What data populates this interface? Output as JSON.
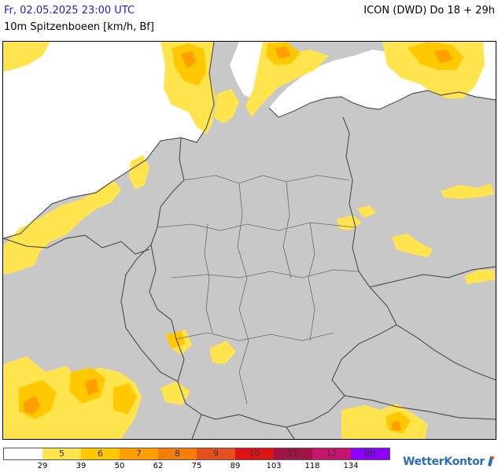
{
  "header": {
    "valid_time": "Fr, 02.05.2025 23:00 UTC",
    "model_run": "ICON (DWD) Do 18 + 29h",
    "parameter": "10m Spitzenboeen [km/h, Bf]"
  },
  "legend": {
    "cells": [
      {
        "bft": "",
        "color": "#ffffff"
      },
      {
        "bft": "5",
        "color": "#ffe44e"
      },
      {
        "bft": "6",
        "color": "#ffc800"
      },
      {
        "bft": "7",
        "color": "#ffa000"
      },
      {
        "bft": "8",
        "color": "#f57d0a"
      },
      {
        "bft": "9",
        "color": "#e6501e"
      },
      {
        "bft": "10",
        "color": "#dc1414"
      },
      {
        "bft": "11",
        "color": "#a01446"
      },
      {
        "bft": "12",
        "color": "#c8146e"
      },
      {
        "bft": "Bft",
        "color": "#8c00ff"
      }
    ],
    "kmh_ticks": [
      "29",
      "39",
      "50",
      "62",
      "75",
      "89",
      "103",
      "118",
      "134"
    ]
  },
  "brand": {
    "name": "WetterKontor"
  },
  "map": {
    "land_color": "#c8c8c8",
    "sea_color": "#ffffff",
    "border_color": "#555555"
  }
}
